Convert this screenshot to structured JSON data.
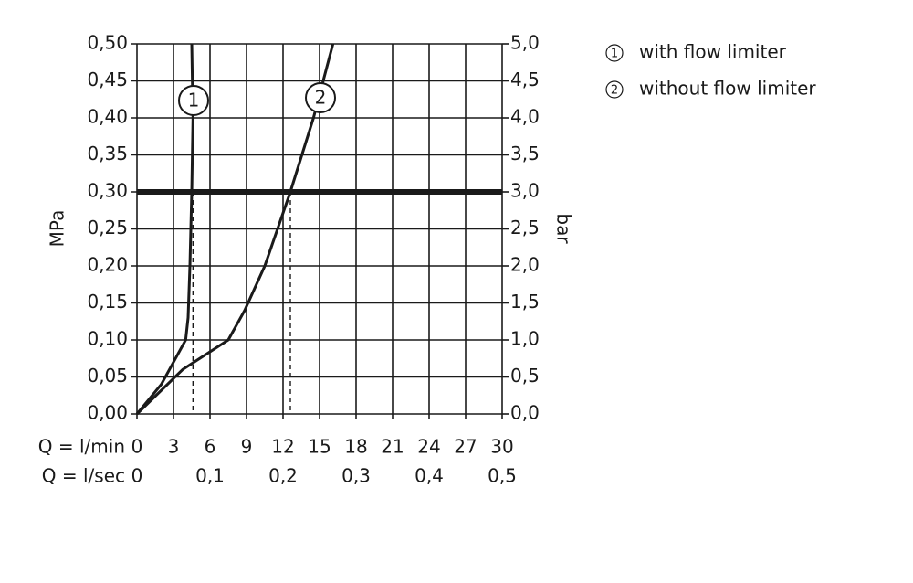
{
  "chart_data": {
    "type": "line",
    "y_label": "MPa",
    "y2_label": "bar",
    "x_label": "Q = l/min",
    "x2_label": "Q = l/sec",
    "xlim": [
      0,
      30
    ],
    "xticks": [
      0,
      3,
      6,
      9,
      12,
      15,
      18,
      21,
      24,
      27,
      30
    ],
    "x2lim": [
      0,
      0.5
    ],
    "x2ticks": [
      {
        "value": 0,
        "label": "0"
      },
      {
        "value": 0.1,
        "label": "0,1"
      },
      {
        "value": 0.2,
        "label": "0,2"
      },
      {
        "value": 0.3,
        "label": "0,3"
      },
      {
        "value": 0.4,
        "label": "0,4"
      },
      {
        "value": 0.5,
        "label": "0,5"
      }
    ],
    "ylim": [
      0,
      0.5
    ],
    "yticks": [
      {
        "value": 0,
        "label": "0,00"
      },
      {
        "value": 0.05,
        "label": "0,05"
      },
      {
        "value": 0.1,
        "label": "0,10"
      },
      {
        "value": 0.15,
        "label": "0,15"
      },
      {
        "value": 0.2,
        "label": "0,20"
      },
      {
        "value": 0.25,
        "label": "0,25"
      },
      {
        "value": 0.3,
        "label": "0,30"
      },
      {
        "value": 0.35,
        "label": "0,35"
      },
      {
        "value": 0.4,
        "label": "0,40"
      },
      {
        "value": 0.45,
        "label": "0,45"
      },
      {
        "value": 0.5,
        "label": "0,50"
      }
    ],
    "y2lim": [
      0,
      5
    ],
    "y2ticks": [
      {
        "value": 0,
        "label": "0,0"
      },
      {
        "value": 0.5,
        "label": "0,5"
      },
      {
        "value": 1,
        "label": "1,0"
      },
      {
        "value": 1.5,
        "label": "1,5"
      },
      {
        "value": 2,
        "label": "2,0"
      },
      {
        "value": 2.5,
        "label": "2,5"
      },
      {
        "value": 3,
        "label": "3,0"
      },
      {
        "value": 3.5,
        "label": "3,5"
      },
      {
        "value": 4,
        "label": "4,0"
      },
      {
        "value": 4.5,
        "label": "4,5"
      },
      {
        "value": 5,
        "label": "5,0"
      }
    ],
    "grid": true,
    "reference_y": 0.3,
    "drop_x": [
      4.6,
      12.6
    ],
    "series": [
      {
        "name": "with flow limiter",
        "label": "1",
        "color": "#1a1a1a",
        "x": [
          0,
          1,
          2,
          3,
          4,
          4.2,
          4.35,
          4.5,
          4.6,
          4.5
        ],
        "values": [
          0,
          0.02,
          0.04,
          0.07,
          0.1,
          0.13,
          0.2,
          0.3,
          0.4,
          0.5
        ]
      },
      {
        "name": "without flow limiter",
        "label": "2",
        "color": "#1a1a1a",
        "x": [
          0,
          3.75,
          7.5,
          8.85,
          10.5,
          12.6,
          14.5,
          15.3,
          16.1
        ],
        "values": [
          0,
          0.06,
          0.1,
          0.14,
          0.2,
          0.3,
          0.4,
          0.45,
          0.5
        ]
      }
    ]
  }
}
